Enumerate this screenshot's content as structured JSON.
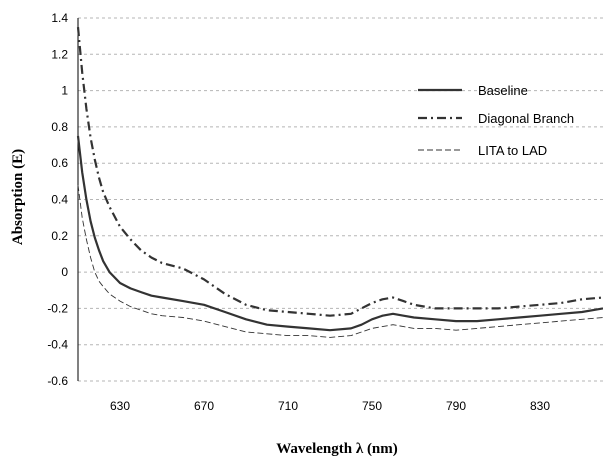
{
  "chart_data": {
    "type": "line",
    "title": "",
    "xlabel": "Wavelength λ (nm)",
    "ylabel": "Absorption (E)",
    "xlim": [
      610,
      860
    ],
    "ylim": [
      -0.6,
      1.4
    ],
    "xticks": [
      630,
      670,
      710,
      750,
      790,
      830
    ],
    "xtick_labels": [
      "630",
      "670",
      "710",
      "750",
      "790",
      "830"
    ],
    "yticks": [
      -0.6,
      -0.4,
      -0.2,
      0,
      0.2,
      0.4,
      0.6,
      0.8,
      1,
      1.2,
      1.4
    ],
    "ytick_labels": [
      "-0.6",
      "-0.4",
      "-0.2",
      "0",
      "0.2",
      "0.4",
      "0.6",
      "0.8",
      "1",
      "1.2",
      "1.4"
    ],
    "grid": "horizontal dashed",
    "legend_position": "top-right",
    "series": [
      {
        "name": "Baseline",
        "style": "solid-thick",
        "color": "#333333",
        "x": [
          610,
          612,
          614,
          616,
          618,
          620,
          622,
          625,
          630,
          635,
          640,
          645,
          650,
          660,
          670,
          680,
          690,
          700,
          710,
          720,
          730,
          740,
          745,
          750,
          755,
          760,
          765,
          770,
          780,
          790,
          800,
          810,
          820,
          830,
          840,
          850,
          860
        ],
        "y": [
          0.75,
          0.55,
          0.4,
          0.28,
          0.19,
          0.12,
          0.06,
          0.0,
          -0.06,
          -0.09,
          -0.11,
          -0.13,
          -0.14,
          -0.16,
          -0.18,
          -0.22,
          -0.26,
          -0.29,
          -0.3,
          -0.31,
          -0.32,
          -0.31,
          -0.29,
          -0.26,
          -0.24,
          -0.23,
          -0.24,
          -0.25,
          -0.26,
          -0.27,
          -0.27,
          -0.26,
          -0.25,
          -0.24,
          -0.23,
          -0.22,
          -0.2
        ]
      },
      {
        "name": "Diagonal Branch",
        "style": "dash-dot",
        "color": "#333333",
        "x": [
          610,
          612,
          614,
          616,
          618,
          620,
          622,
          625,
          630,
          635,
          640,
          645,
          650,
          660,
          670,
          680,
          690,
          700,
          710,
          720,
          730,
          740,
          745,
          750,
          755,
          760,
          765,
          770,
          780,
          790,
          800,
          810,
          820,
          830,
          840,
          850,
          860
        ],
        "y": [
          1.35,
          1.1,
          0.9,
          0.74,
          0.62,
          0.52,
          0.44,
          0.36,
          0.25,
          0.18,
          0.12,
          0.08,
          0.05,
          0.02,
          -0.04,
          -0.12,
          -0.18,
          -0.21,
          -0.22,
          -0.23,
          -0.24,
          -0.23,
          -0.2,
          -0.17,
          -0.15,
          -0.14,
          -0.16,
          -0.18,
          -0.2,
          -0.2,
          -0.2,
          -0.2,
          -0.19,
          -0.18,
          -0.17,
          -0.15,
          -0.14
        ]
      },
      {
        "name": "LITA to LAD",
        "style": "dashed-thin",
        "color": "#333333",
        "x": [
          610,
          612,
          614,
          616,
          618,
          620,
          622,
          625,
          630,
          635,
          640,
          645,
          650,
          660,
          670,
          680,
          690,
          700,
          710,
          720,
          730,
          740,
          745,
          750,
          755,
          760,
          765,
          770,
          780,
          790,
          800,
          810,
          820,
          830,
          840,
          850,
          860
        ],
        "y": [
          0.48,
          0.3,
          0.18,
          0.08,
          0.0,
          -0.05,
          -0.08,
          -0.12,
          -0.16,
          -0.19,
          -0.21,
          -0.23,
          -0.24,
          -0.25,
          -0.27,
          -0.3,
          -0.33,
          -0.34,
          -0.35,
          -0.35,
          -0.36,
          -0.35,
          -0.33,
          -0.31,
          -0.3,
          -0.29,
          -0.3,
          -0.31,
          -0.31,
          -0.32,
          -0.31,
          -0.3,
          -0.29,
          -0.28,
          -0.27,
          -0.26,
          -0.25
        ]
      }
    ]
  }
}
